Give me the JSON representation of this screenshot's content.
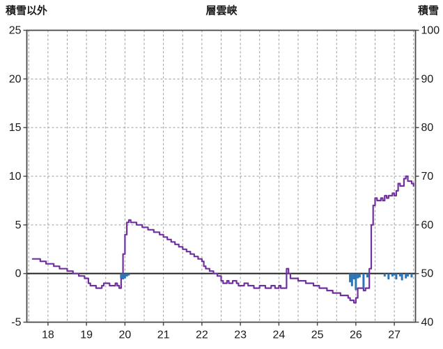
{
  "chart_data": {
    "type": "line",
    "title": "層雲峡",
    "x_range": [
      17.45,
      27.55
    ],
    "x_ticks": [
      18,
      19,
      20,
      21,
      22,
      23,
      24,
      25,
      26,
      27
    ],
    "left_axis": {
      "label": "積雪以外",
      "range": [
        -5,
        25
      ]
    },
    "right_axis": {
      "label": "積雪",
      "range": [
        40,
        100
      ]
    },
    "left_ticks": [
      25,
      20,
      15,
      10,
      5,
      0,
      -5
    ],
    "right_ticks": [
      100,
      90,
      80,
      70,
      60,
      50,
      40
    ],
    "grid": {
      "x_step": 0.5,
      "left_step": 5,
      "zero_line": true,
      "style": "dashed"
    },
    "colors": {
      "line": "#7030A0",
      "bar": "#2E75B6",
      "grid": "#9a9a9a",
      "border": "#4a4a4a",
      "zero": "#222222"
    },
    "series": [
      {
        "name": "積雪",
        "type": "line",
        "axis": "right",
        "color": "#7030A0",
        "step": true,
        "points": [
          [
            17.6,
            53
          ],
          [
            17.75,
            53
          ],
          [
            17.8,
            52.5
          ],
          [
            17.9,
            52.5
          ],
          [
            17.95,
            52
          ],
          [
            18.1,
            52
          ],
          [
            18.15,
            51.5
          ],
          [
            18.25,
            51.5
          ],
          [
            18.3,
            51
          ],
          [
            18.45,
            51
          ],
          [
            18.5,
            50.5
          ],
          [
            18.6,
            50.5
          ],
          [
            18.65,
            50
          ],
          [
            18.75,
            50
          ],
          [
            18.8,
            49.5
          ],
          [
            18.9,
            49.5
          ],
          [
            18.95,
            49
          ],
          [
            19.0,
            49
          ],
          [
            19.05,
            48
          ],
          [
            19.1,
            47.5
          ],
          [
            19.2,
            47.5
          ],
          [
            19.25,
            47
          ],
          [
            19.35,
            47
          ],
          [
            19.4,
            47.5
          ],
          [
            19.45,
            48
          ],
          [
            19.55,
            48
          ],
          [
            19.6,
            47.5
          ],
          [
            19.7,
            47.5
          ],
          [
            19.75,
            48
          ],
          [
            19.8,
            47.5
          ],
          [
            19.85,
            47
          ],
          [
            19.9,
            49
          ],
          [
            19.95,
            54
          ],
          [
            20.0,
            58
          ],
          [
            20.05,
            60.5
          ],
          [
            20.1,
            61
          ],
          [
            20.15,
            60.5
          ],
          [
            20.25,
            60.5
          ],
          [
            20.3,
            60
          ],
          [
            20.4,
            60
          ],
          [
            20.45,
            59.5
          ],
          [
            20.55,
            59.5
          ],
          [
            20.6,
            59
          ],
          [
            20.7,
            59
          ],
          [
            20.75,
            58.5
          ],
          [
            20.85,
            58.5
          ],
          [
            20.9,
            58
          ],
          [
            21.0,
            57.5
          ],
          [
            21.1,
            57
          ],
          [
            21.2,
            56.5
          ],
          [
            21.3,
            56
          ],
          [
            21.4,
            55.5
          ],
          [
            21.5,
            55
          ],
          [
            21.6,
            54.5
          ],
          [
            21.7,
            54
          ],
          [
            21.8,
            53.5
          ],
          [
            21.9,
            53
          ],
          [
            22.0,
            52.5
          ],
          [
            22.05,
            51.5
          ],
          [
            22.1,
            51
          ],
          [
            22.2,
            50.5
          ],
          [
            22.3,
            50
          ],
          [
            22.4,
            49.5
          ],
          [
            22.5,
            48.5
          ],
          [
            22.55,
            48
          ],
          [
            22.65,
            48.5
          ],
          [
            22.7,
            48
          ],
          [
            22.8,
            48.5
          ],
          [
            22.9,
            48
          ],
          [
            22.95,
            47.5
          ],
          [
            23.05,
            47.5
          ],
          [
            23.1,
            48
          ],
          [
            23.2,
            47.5
          ],
          [
            23.3,
            47.5
          ],
          [
            23.35,
            47
          ],
          [
            23.45,
            47
          ],
          [
            23.5,
            47.5
          ],
          [
            23.6,
            47.5
          ],
          [
            23.65,
            47
          ],
          [
            23.75,
            47
          ],
          [
            23.8,
            47.5
          ],
          [
            23.9,
            47
          ],
          [
            24.0,
            47.5
          ],
          [
            24.05,
            47
          ],
          [
            24.15,
            47
          ],
          [
            24.2,
            51
          ],
          [
            24.25,
            50
          ],
          [
            24.3,
            49
          ],
          [
            24.4,
            49
          ],
          [
            24.5,
            48.5
          ],
          [
            24.6,
            48.5
          ],
          [
            24.7,
            48
          ],
          [
            24.8,
            48
          ],
          [
            24.9,
            47.5
          ],
          [
            25.0,
            47.5
          ],
          [
            25.05,
            47
          ],
          [
            25.15,
            47
          ],
          [
            25.25,
            46.5
          ],
          [
            25.35,
            46.5
          ],
          [
            25.4,
            46
          ],
          [
            25.55,
            46
          ],
          [
            25.6,
            45.5
          ],
          [
            25.75,
            45.5
          ],
          [
            25.8,
            45
          ],
          [
            25.85,
            44.5
          ],
          [
            25.9,
            44.5
          ],
          [
            25.95,
            44
          ],
          [
            26.0,
            45
          ],
          [
            26.05,
            47
          ],
          [
            26.15,
            47
          ],
          [
            26.2,
            46.5
          ],
          [
            26.25,
            47
          ],
          [
            26.3,
            47
          ],
          [
            26.35,
            51
          ],
          [
            26.4,
            60
          ],
          [
            26.45,
            64
          ],
          [
            26.5,
            65.5
          ],
          [
            26.55,
            65
          ],
          [
            26.6,
            65
          ],
          [
            26.65,
            65.5
          ],
          [
            26.7,
            65
          ],
          [
            26.75,
            66
          ],
          [
            26.8,
            65.5
          ],
          [
            26.85,
            66
          ],
          [
            26.9,
            66
          ],
          [
            26.95,
            66.5
          ],
          [
            27.0,
            66
          ],
          [
            27.05,
            67
          ],
          [
            27.1,
            68.5
          ],
          [
            27.15,
            68
          ],
          [
            27.2,
            68
          ],
          [
            27.25,
            69.5
          ],
          [
            27.3,
            70
          ],
          [
            27.35,
            69
          ],
          [
            27.4,
            69
          ],
          [
            27.45,
            68.5
          ],
          [
            27.5,
            68
          ]
        ]
      },
      {
        "name": "積雪以外",
        "type": "bar",
        "axis": "left",
        "color": "#2E75B6",
        "points": [
          [
            19.9,
            -0.5
          ],
          [
            19.95,
            -0.6
          ],
          [
            20.0,
            -0.5
          ],
          [
            20.05,
            -0.3
          ],
          [
            20.1,
            -0.2
          ],
          [
            25.85,
            -0.9
          ],
          [
            25.9,
            -1.3
          ],
          [
            25.95,
            -0.6
          ],
          [
            26.0,
            -1.7
          ],
          [
            26.05,
            -0.5
          ],
          [
            26.1,
            -0.4
          ],
          [
            26.2,
            -1.5
          ],
          [
            26.3,
            -0.4
          ],
          [
            26.75,
            -0.3
          ],
          [
            26.85,
            -0.6
          ],
          [
            26.95,
            -0.3
          ],
          [
            27.0,
            -0.2
          ],
          [
            27.05,
            -0.6
          ],
          [
            27.15,
            -0.3
          ],
          [
            27.2,
            -0.7
          ],
          [
            27.3,
            -0.5
          ],
          [
            27.35,
            -0.3
          ],
          [
            27.45,
            -0.4
          ]
        ]
      }
    ]
  }
}
